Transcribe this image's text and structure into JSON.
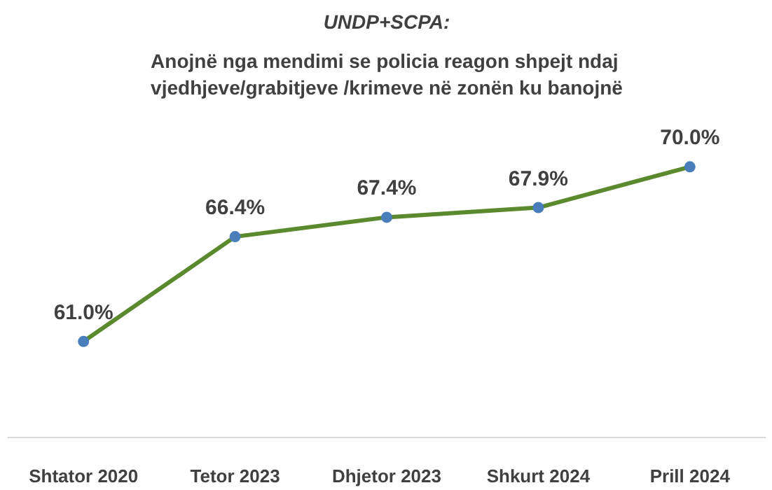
{
  "chart_data": {
    "type": "line",
    "title": "UNDP+SCPA:",
    "subtitle": "Anojnë nga mendimi se policia reagon shpejt ndaj vjedhjeve/grabitjeve /krimeve në zonën ku banojnë",
    "categories": [
      "Shtator 2020",
      "Tetor 2023",
      "Dhjetor 2023",
      "Shkurt 2024",
      "Prill 2024"
    ],
    "series": [
      {
        "color": "#5b8a2e",
        "colors": [
          "#4a7ebb",
          "#4a7ebb",
          "#4a7ebb",
          "#4a7ebb",
          "#4a7ebb"
        ],
        "values": [
          61.0,
          66.4,
          67.4,
          67.9,
          70.0
        ],
        "value_labels": [
          "61.0%",
          "66.4%",
          "67.4%",
          "67.9%",
          "70.0%"
        ]
      }
    ],
    "marker": "circle",
    "grid": false
  }
}
